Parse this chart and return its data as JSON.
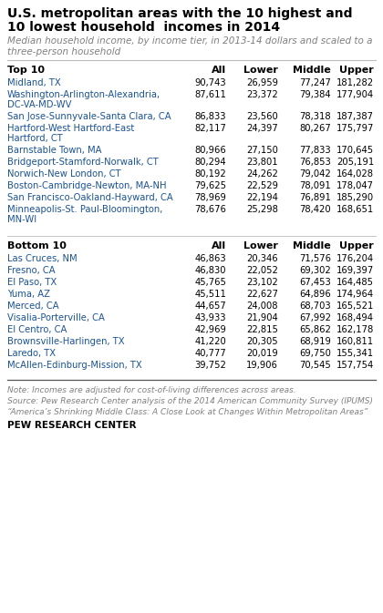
{
  "title_line1": "U.S. metropolitan areas with the 10 highest and",
  "title_line2": "10 lowest household  incomes in 2014",
  "subtitle_line1": "Median household income, by income tier, in 2013-14 dollars and scaled to a",
  "subtitle_line2": "three-person household",
  "top10_header": "Top 10",
  "bottom10_header": "Bottom 10",
  "col_headers": [
    "All",
    "Lower",
    "Middle",
    "Upper"
  ],
  "top10": [
    [
      "Midland, TX",
      "90,743",
      "26,959",
      "77,247",
      "181,282"
    ],
    [
      "Washington-Arlington-Alexandria,\nDC-VA-MD-WV",
      "87,611",
      "23,372",
      "79,384",
      "177,904"
    ],
    [
      "San Jose-Sunnyvale-Santa Clara, CA",
      "86,833",
      "23,560",
      "78,318",
      "187,387"
    ],
    [
      "Hartford-West Hartford-East\nHartford, CT",
      "82,117",
      "24,397",
      "80,267",
      "175,797"
    ],
    [
      "Barnstable Town, MA",
      "80,966",
      "27,150",
      "77,833",
      "170,645"
    ],
    [
      "Bridgeport-Stamford-Norwalk, CT",
      "80,294",
      "23,801",
      "76,853",
      "205,191"
    ],
    [
      "Norwich-New London, CT",
      "80,192",
      "24,262",
      "79,042",
      "164,028"
    ],
    [
      "Boston-Cambridge-Newton, MA-NH",
      "79,625",
      "22,529",
      "78,091",
      "178,047"
    ],
    [
      "San Francisco-Oakland-Hayward, CA",
      "78,969",
      "22,194",
      "76,891",
      "185,290"
    ],
    [
      "Minneapolis-St. Paul-Bloomington,\nMN-WI",
      "78,676",
      "25,298",
      "78,420",
      "168,651"
    ]
  ],
  "bottom10": [
    [
      "Las Cruces, NM",
      "46,863",
      "20,346",
      "71,576",
      "176,204"
    ],
    [
      "Fresno, CA",
      "46,830",
      "22,052",
      "69,302",
      "169,397"
    ],
    [
      "El Paso, TX",
      "45,765",
      "23,102",
      "67,453",
      "164,485"
    ],
    [
      "Yuma, AZ",
      "45,511",
      "22,627",
      "64,896",
      "174,964"
    ],
    [
      "Merced, CA",
      "44,657",
      "24,008",
      "68,703",
      "165,521"
    ],
    [
      "Visalia-Porterville, CA",
      "43,933",
      "21,904",
      "67,992",
      "168,494"
    ],
    [
      "El Centro, CA",
      "42,969",
      "22,815",
      "65,862",
      "162,178"
    ],
    [
      "Brownsville-Harlingen, TX",
      "41,220",
      "20,305",
      "68,919",
      "160,811"
    ],
    [
      "Laredo, TX",
      "40,777",
      "20,019",
      "69,750",
      "155,341"
    ],
    [
      "McAllen-Edinburg-Mission, TX",
      "39,752",
      "19,906",
      "70,545",
      "157,754"
    ]
  ],
  "note": "Note: Incomes are adjusted for cost-of-living differences across areas.",
  "source1": "Source: Pew Research Center analysis of the 2014 American Community Survey (IPUMS)",
  "source2": "“America’s Shrinking Middle Class: A Close Look at Changes Within Metropolitan Areas”",
  "footer": "PEW RESEARCH CENTER",
  "title_color": "#000000",
  "subtitle_color": "#808080",
  "header_color": "#000000",
  "city_color": "#1a5496",
  "data_color": "#000000",
  "note_color": "#808080",
  "bg_color": "#ffffff",
  "divider_color": "#bbbbbb",
  "bottom_line_color": "#555555"
}
